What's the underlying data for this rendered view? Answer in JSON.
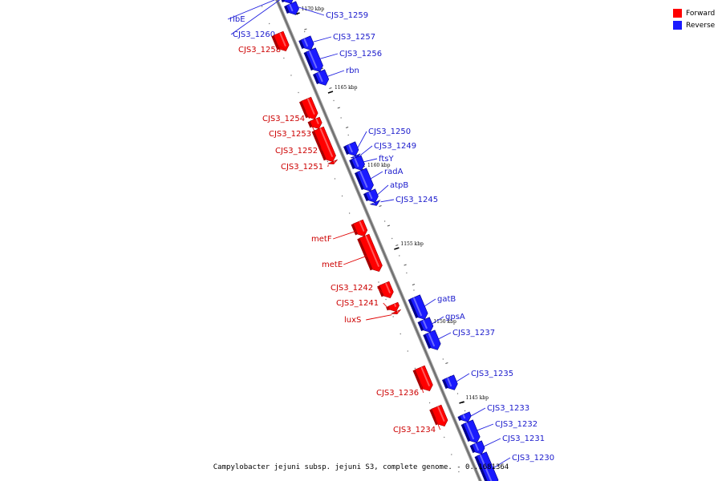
{
  "legend": {
    "forward_label": "Forward",
    "reverse_label": "Reverse",
    "forward_color": "#ff0000",
    "reverse_color": "#1a1aff"
  },
  "caption": "Campylobacter jejuni subsp. jejuni S3, complete genome. - 0..1681364",
  "ticks": [
    "1170 kbp",
    "1165 kbp",
    "1160 kbp",
    "1155 kbp",
    "1150 kbp",
    "1145 kbp"
  ],
  "genes": [
    {
      "name": "ribE",
      "strand": "reverse"
    },
    {
      "name": "CJS3_1259",
      "strand": "reverse"
    },
    {
      "name": "CJS3_1260",
      "strand": "reverse"
    },
    {
      "name": "CJS3_1258",
      "strand": "forward"
    },
    {
      "name": "CJS3_1257",
      "strand": "reverse"
    },
    {
      "name": "CJS3_1256",
      "strand": "reverse"
    },
    {
      "name": "rbn",
      "strand": "reverse"
    },
    {
      "name": "CJS3_1254",
      "strand": "forward"
    },
    {
      "name": "CJS3_1253",
      "strand": "forward"
    },
    {
      "name": "CJS3_1252",
      "strand": "forward"
    },
    {
      "name": "CJS3_1251",
      "strand": "forward"
    },
    {
      "name": "CJS3_1250",
      "strand": "reverse"
    },
    {
      "name": "CJS3_1249",
      "strand": "reverse"
    },
    {
      "name": "ftsY",
      "strand": "reverse"
    },
    {
      "name": "radA",
      "strand": "reverse"
    },
    {
      "name": "atpB",
      "strand": "reverse"
    },
    {
      "name": "CJS3_1245",
      "strand": "reverse"
    },
    {
      "name": "metF",
      "strand": "forward"
    },
    {
      "name": "metE",
      "strand": "forward"
    },
    {
      "name": "CJS3_1242",
      "strand": "forward"
    },
    {
      "name": "CJS3_1241",
      "strand": "forward"
    },
    {
      "name": "luxS",
      "strand": "forward"
    },
    {
      "name": "gatB",
      "strand": "reverse"
    },
    {
      "name": "gpsA",
      "strand": "reverse"
    },
    {
      "name": "CJS3_1237",
      "strand": "reverse"
    },
    {
      "name": "CJS3_1236",
      "strand": "forward"
    },
    {
      "name": "CJS3_1235",
      "strand": "reverse"
    },
    {
      "name": "CJS3_1234",
      "strand": "forward"
    },
    {
      "name": "CJS3_1233",
      "strand": "reverse"
    },
    {
      "name": "CJS3_1232",
      "strand": "reverse"
    },
    {
      "name": "CJS3_1231",
      "strand": "reverse"
    },
    {
      "name": "CJS3_1230",
      "strand": "reverse"
    }
  ]
}
